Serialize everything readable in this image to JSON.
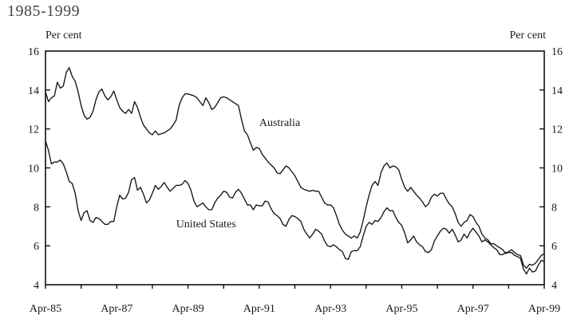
{
  "title": "1985-1999",
  "chart_data": {
    "type": "line",
    "title": "1985-1999",
    "ylabel_left": "Per cent",
    "ylabel_right": "Per cent",
    "ylim": [
      4,
      16
    ],
    "yticks": [
      4,
      6,
      8,
      10,
      12,
      14,
      16
    ],
    "grid": false,
    "legend_position": "inline-labels",
    "line_color": "#151515",
    "x_unit": "months from Apr-85",
    "x_ticks": [
      {
        "label": "Apr-85",
        "month": 0
      },
      {
        "label": "Apr-87",
        "month": 24
      },
      {
        "label": "Apr-89",
        "month": 48
      },
      {
        "label": "Apr-91",
        "month": 72
      },
      {
        "label": "Apr-93",
        "month": 96
      },
      {
        "label": "Apr-95",
        "month": 120
      },
      {
        "label": "Apr-97",
        "month": 144
      },
      {
        "label": "Apr-99",
        "month": 168
      }
    ],
    "x_minor_tick_every_months": 12,
    "series": [
      {
        "name": "Australia",
        "values": [
          13.9,
          13.4,
          13.6,
          13.7,
          14.4,
          14.1,
          14.2,
          14.9,
          15.15,
          14.7,
          14.45,
          13.9,
          13.2,
          12.7,
          12.5,
          12.6,
          12.9,
          13.5,
          13.9,
          14.05,
          13.7,
          13.5,
          13.65,
          13.95,
          13.5,
          13.1,
          12.9,
          12.8,
          13.0,
          12.8,
          13.4,
          13.1,
          12.6,
          12.2,
          12.0,
          11.8,
          11.7,
          11.9,
          11.7,
          11.75,
          11.8,
          11.9,
          12.0,
          12.2,
          12.45,
          13.2,
          13.6,
          13.8,
          13.8,
          13.75,
          13.7,
          13.6,
          13.4,
          13.2,
          13.6,
          13.35,
          13.0,
          13.1,
          13.35,
          13.6,
          13.65,
          13.6,
          13.5,
          13.4,
          13.3,
          13.2,
          12.5,
          11.9,
          11.7,
          11.3,
          10.9,
          11.05,
          11.0,
          10.7,
          10.5,
          10.3,
          10.15,
          10.0,
          9.75,
          9.7,
          9.9,
          10.1,
          10.0,
          9.8,
          9.6,
          9.3,
          9.0,
          8.9,
          8.85,
          8.8,
          8.85,
          8.8,
          8.8,
          8.5,
          8.2,
          8.1,
          8.1,
          7.95,
          7.55,
          7.1,
          6.8,
          6.6,
          6.5,
          6.4,
          6.5,
          6.4,
          6.7,
          7.3,
          8.0,
          8.6,
          9.1,
          9.3,
          9.1,
          9.75,
          10.1,
          10.25,
          10.0,
          10.1,
          10.05,
          9.9,
          9.4,
          9.0,
          8.8,
          9.0,
          8.8,
          8.6,
          8.45,
          8.25,
          8.0,
          8.15,
          8.5,
          8.65,
          8.55,
          8.7,
          8.7,
          8.4,
          8.15,
          8.0,
          7.65,
          7.2,
          7.0,
          7.2,
          7.3,
          7.6,
          7.5,
          7.2,
          7.0,
          6.6,
          6.4,
          6.3,
          6.1,
          6.1,
          6.0,
          5.9,
          5.8,
          5.6,
          5.7,
          5.8,
          5.65,
          5.55,
          5.5,
          5.0,
          4.85,
          5.05,
          5.0,
          5.1,
          5.3,
          5.5,
          5.6
        ]
      },
      {
        "name": "United States",
        "values": [
          11.4,
          10.9,
          10.2,
          10.3,
          10.3,
          10.4,
          10.2,
          9.8,
          9.3,
          9.2,
          8.7,
          7.8,
          7.3,
          7.7,
          7.8,
          7.3,
          7.2,
          7.45,
          7.4,
          7.25,
          7.1,
          7.1,
          7.25,
          7.25,
          8.0,
          8.6,
          8.4,
          8.45,
          8.75,
          9.4,
          9.5,
          8.85,
          9.0,
          8.65,
          8.2,
          8.35,
          8.7,
          9.1,
          8.9,
          9.05,
          9.25,
          9.0,
          8.8,
          8.95,
          9.1,
          9.1,
          9.15,
          9.35,
          9.2,
          8.85,
          8.3,
          8.0,
          8.1,
          8.2,
          8.0,
          7.85,
          7.85,
          8.2,
          8.45,
          8.6,
          8.8,
          8.75,
          8.5,
          8.45,
          8.75,
          8.9,
          8.7,
          8.4,
          8.1,
          8.1,
          7.85,
          8.1,
          8.05,
          8.05,
          8.3,
          8.25,
          7.9,
          7.65,
          7.55,
          7.4,
          7.1,
          7.0,
          7.35,
          7.55,
          7.5,
          7.4,
          7.25,
          6.85,
          6.6,
          6.4,
          6.6,
          6.85,
          6.75,
          6.6,
          6.25,
          6.0,
          5.95,
          6.05,
          5.95,
          5.8,
          5.7,
          5.35,
          5.3,
          5.7,
          5.75,
          5.75,
          5.95,
          6.5,
          7.0,
          7.2,
          7.1,
          7.3,
          7.25,
          7.45,
          7.75,
          7.95,
          7.8,
          7.8,
          7.45,
          7.2,
          7.05,
          6.65,
          6.15,
          6.3,
          6.5,
          6.2,
          6.05,
          5.95,
          5.7,
          5.65,
          5.8,
          6.25,
          6.5,
          6.75,
          6.9,
          6.85,
          6.65,
          6.85,
          6.55,
          6.2,
          6.3,
          6.6,
          6.4,
          6.7,
          6.9,
          6.7,
          6.5,
          6.2,
          6.3,
          6.2,
          6.05,
          5.9,
          5.8,
          5.55,
          5.55,
          5.65,
          5.65,
          5.65,
          5.5,
          5.45,
          5.35,
          4.8,
          4.55,
          4.85,
          4.65,
          4.7,
          5.0,
          5.25,
          5.2
        ]
      }
    ],
    "annotations": [
      {
        "text": "Australia",
        "month": 72,
        "value": 12.15
      },
      {
        "text": "United States",
        "month": 44,
        "value": 6.95
      }
    ]
  }
}
